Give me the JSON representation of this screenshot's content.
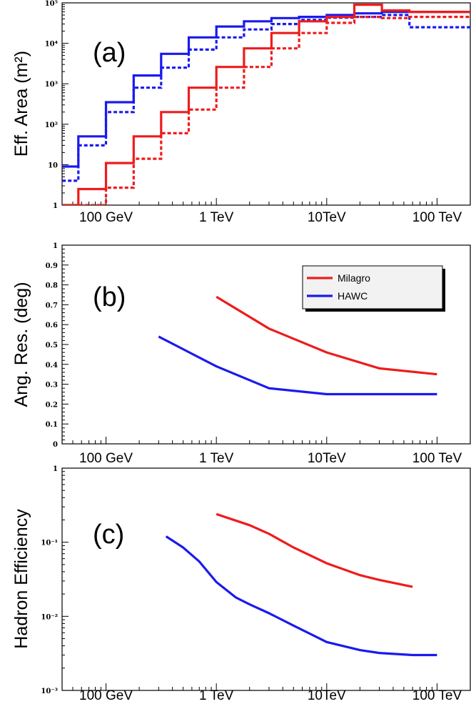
{
  "colors": {
    "milagro": "#ee1c1c",
    "hawc": "#1a1aee"
  },
  "chart_data": [
    {
      "id": "a",
      "type": "line",
      "step": true,
      "panel_label": "(a)",
      "ylabel": "Eff. Area (m²)",
      "xscale": "log",
      "yscale": "log",
      "xlim": [
        0.04,
        200
      ],
      "ylim": [
        1,
        100000
      ],
      "xtick_labels": [
        "100 GeV",
        "1 TeV",
        "10TeV",
        "100 TeV"
      ],
      "xtick_values": [
        0.1,
        1,
        10,
        100
      ],
      "ytick_labels": [
        "1",
        "10",
        "10²",
        "10³",
        "10⁴",
        "10⁵"
      ],
      "ytick_values": [
        1,
        10,
        100,
        1000,
        10000,
        100000
      ],
      "bin_edges": [
        0.0316,
        0.0562,
        0.1,
        0.178,
        0.316,
        0.562,
        1,
        1.78,
        3.16,
        5.62,
        10,
        17.8,
        31.6,
        56.2,
        200
      ],
      "series": [
        {
          "color_key": "hawc",
          "style": "solid",
          "values": [
            9,
            50,
            350,
            1600,
            5500,
            14000,
            26000,
            35000,
            42000,
            45000,
            50000,
            55000,
            60000,
            60000
          ]
        },
        {
          "color_key": "hawc",
          "style": "dashed",
          "values": [
            4,
            30,
            200,
            800,
            2500,
            7000,
            14000,
            22000,
            30000,
            38000,
            43000,
            45000,
            50000,
            25000
          ]
        },
        {
          "color_key": "milagro",
          "style": "solid",
          "values": [
            1,
            2.5,
            11,
            50,
            200,
            800,
            2600,
            7500,
            18000,
            35000,
            45000,
            90000,
            65000,
            60000
          ]
        },
        {
          "color_key": "milagro",
          "style": "dashed",
          "values": [
            0.9,
            1,
            2.7,
            14,
            60,
            230,
            800,
            2600,
            7500,
            18000,
            32000,
            45000,
            42000,
            45000
          ]
        }
      ]
    },
    {
      "id": "b",
      "type": "line",
      "panel_label": "(b)",
      "ylabel": "Ang. Res. (deg)",
      "xscale": "log",
      "yscale": "linear",
      "xlim": [
        0.04,
        200
      ],
      "ylim": [
        0,
        1
      ],
      "xtick_labels": [
        "100 GeV",
        "1 TeV",
        "10TeV",
        "100 TeV"
      ],
      "xtick_values": [
        0.1,
        1,
        10,
        100
      ],
      "ytick_labels": [
        "0",
        "0.1",
        "0.2",
        "0.3",
        "0.4",
        "0.5",
        "0.6",
        "0.7",
        "0.8",
        "0.9",
        "1"
      ],
      "ytick_values": [
        0,
        0.1,
        0.2,
        0.3,
        0.4,
        0.5,
        0.6,
        0.7,
        0.8,
        0.9,
        1
      ],
      "legend": {
        "position": "top-right",
        "entries": [
          {
            "name": "Milagro",
            "color_key": "milagro"
          },
          {
            "name": "HAWC",
            "color_key": "hawc"
          }
        ]
      },
      "series": [
        {
          "name": "Milagro",
          "color_key": "milagro",
          "style": "solid",
          "x": [
            1,
            3,
            10,
            30,
            100
          ],
          "values": [
            0.74,
            0.58,
            0.46,
            0.38,
            0.35
          ]
        },
        {
          "name": "HAWC",
          "color_key": "hawc",
          "style": "solid",
          "x": [
            0.3,
            1,
            3,
            10,
            30,
            100
          ],
          "values": [
            0.54,
            0.39,
            0.28,
            0.25,
            0.25,
            0.25
          ]
        }
      ]
    },
    {
      "id": "c",
      "type": "line",
      "panel_label": "(c)",
      "ylabel": "Hadron Efficiency",
      "xscale": "log",
      "yscale": "log",
      "xlim": [
        0.04,
        200
      ],
      "ylim": [
        0.001,
        1
      ],
      "xtick_labels": [
        "100 GeV",
        "1 TeV",
        "10TeV",
        "100 TeV"
      ],
      "xtick_values": [
        0.1,
        1,
        10,
        100
      ],
      "ytick_labels": [
        "10⁻³",
        "10⁻²",
        "10⁻¹",
        "1"
      ],
      "ytick_values": [
        0.001,
        0.01,
        0.1,
        1
      ],
      "series": [
        {
          "name": "Milagro",
          "color_key": "milagro",
          "style": "solid",
          "x": [
            1,
            2,
            3,
            5,
            10,
            20,
            30,
            60
          ],
          "values": [
            0.24,
            0.17,
            0.13,
            0.085,
            0.052,
            0.036,
            0.031,
            0.025
          ]
        },
        {
          "name": "HAWC",
          "color_key": "hawc",
          "style": "solid",
          "x": [
            0.35,
            0.5,
            0.7,
            1,
            1.5,
            2,
            3,
            5,
            10,
            20,
            30,
            60,
            100
          ],
          "values": [
            0.12,
            0.085,
            0.055,
            0.029,
            0.018,
            0.0145,
            0.011,
            0.0075,
            0.0045,
            0.0035,
            0.0032,
            0.003,
            0.003
          ]
        }
      ]
    }
  ]
}
